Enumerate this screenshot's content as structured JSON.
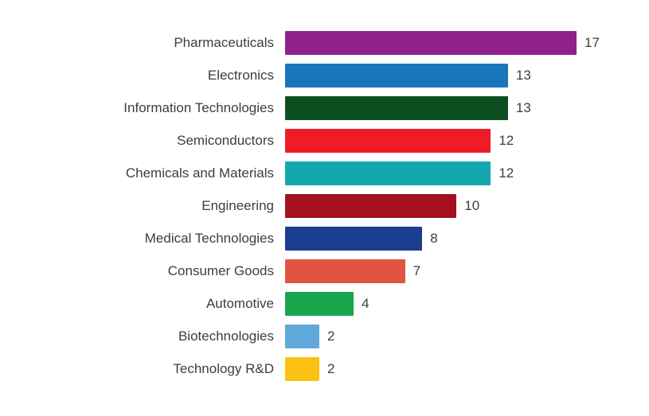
{
  "chart_data": {
    "type": "bar",
    "orientation": "horizontal",
    "title": "",
    "xlabel": "",
    "ylabel": "",
    "xlim": [
      0,
      17
    ],
    "grid": false,
    "legend": "none",
    "categories": [
      "Pharmaceuticals",
      "Electronics",
      "Information Technologies",
      "Semiconductors",
      "Chemicals and Materials",
      "Engineering",
      "Medical Technologies",
      "Consumer Goods",
      "Automotive",
      "Biotechnologies",
      "Technology R&D"
    ],
    "values": [
      17,
      13,
      13,
      12,
      12,
      10,
      8,
      7,
      4,
      2,
      2
    ],
    "colors": [
      "#91208d",
      "#1b75bb",
      "#0e4f21",
      "#ee1c25",
      "#13a8b0",
      "#a5101f",
      "#1b3e8f",
      "#e25440",
      "#19a64a",
      "#5fa8d9",
      "#fcc211"
    ],
    "value_label_color": "#3d3d3d",
    "category_label_color": "#3d3d3d"
  }
}
